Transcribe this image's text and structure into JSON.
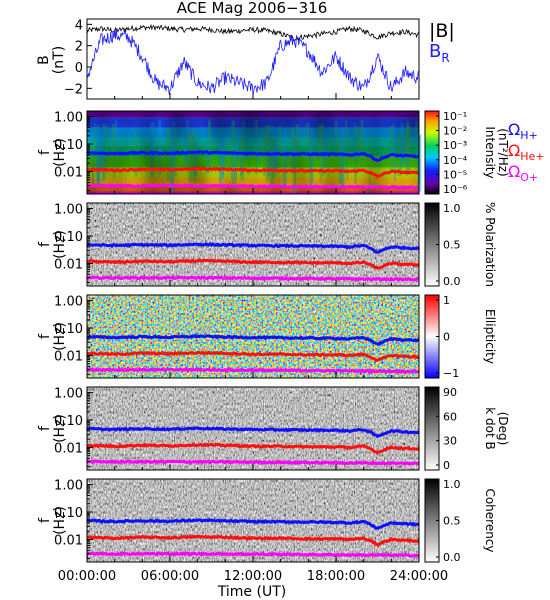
{
  "title": "ACE Mag 2006−316",
  "xaxis": {
    "label": "Time (UT)",
    "ticks": [
      "00:00:00",
      "06:00:00",
      "12:00:00",
      "18:00:00",
      "24:00:00"
    ],
    "range_hours": [
      0,
      24
    ]
  },
  "colors": {
    "B_total": "#000000",
    "B_R": "#1c1cff",
    "H": "#1010ff",
    "He": "#ff1010",
    "O": "#ff00ff"
  },
  "panel1": {
    "ylabel": "B",
    "yunits": "(nT)",
    "yticks": [
      "4",
      "2",
      "0",
      "−2"
    ],
    "legend_B": "|B|",
    "legend_BR": "B",
    "legend_BR_sub": "R"
  },
  "spec_panels": [
    {
      "name": "intensity",
      "ylabel": "f",
      "yunits": "(Hz)",
      "yticks": [
        "1.00",
        "0.10",
        "0.01"
      ],
      "colorbar_label": "Intensity",
      "colorbar_units": "(nT²/Hz)",
      "colorbar_ticks": [
        "10⁻¹",
        "10⁻²",
        "10⁻³",
        "10⁻⁴",
        "10⁻⁵",
        "10⁻⁶"
      ],
      "legend": [
        {
          "sym": "Ω",
          "sub": "H+",
          "color": "H"
        },
        {
          "sym": "Ω",
          "sub": "He+",
          "color": "He"
        },
        {
          "sym": "Ω",
          "sub": "O+",
          "color": "O"
        }
      ]
    },
    {
      "name": "polarization",
      "ylabel": "f",
      "yunits": "(Hz)",
      "yticks": [
        "1.00",
        "0.10",
        "0.01"
      ],
      "colorbar_label": "% Polarization",
      "colorbar_units": "",
      "colorbar_ticks": [
        "1.0",
        "0.5",
        "0.0"
      ]
    },
    {
      "name": "ellipticity",
      "ylabel": "f",
      "yunits": "(Hz)",
      "yticks": [
        "1.00",
        "0.10",
        "0.01"
      ],
      "colorbar_label": "Ellipticity",
      "colorbar_units": "",
      "colorbar_ticks": [
        "1",
        "0",
        "−1"
      ]
    },
    {
      "name": "kdotb",
      "ylabel": "f",
      "yunits": "(Hz)",
      "yticks": [
        "1.00",
        "0.10",
        "0.01"
      ],
      "colorbar_label": "k dot B",
      "colorbar_units": "(Deg)",
      "colorbar_ticks": [
        "90",
        "60",
        "30",
        "0"
      ]
    },
    {
      "name": "coherency",
      "ylabel": "f",
      "yunits": "(Hz)",
      "yticks": [
        "1.00",
        "0.10",
        "0.01"
      ],
      "colorbar_label": "Coherency",
      "colorbar_units": "",
      "colorbar_ticks": [
        "1.0",
        "0.5",
        "0.0"
      ]
    }
  ],
  "chart_data": {
    "type": "line",
    "title": "ACE Mag 2006−316",
    "xlabel": "Time (UT)",
    "ylabel": "B (nT)",
    "xlim_hours": [
      0,
      24
    ],
    "ylim_B": [
      -3,
      4.5
    ],
    "ylim_f_hz": [
      0.0015,
      1.6
    ],
    "series": [
      {
        "name": "|B|",
        "x_hours": [
          0,
          1,
          2,
          3,
          4,
          5,
          6,
          7,
          8,
          9,
          10,
          11,
          12,
          13,
          14,
          15,
          16,
          17,
          18,
          19,
          20,
          21,
          22,
          23,
          24
        ],
        "values": [
          3.4,
          3.6,
          3.4,
          3.6,
          3.7,
          3.7,
          3.6,
          3.5,
          3.6,
          3.5,
          3.3,
          3.4,
          3.5,
          3.4,
          3.1,
          2.7,
          2.9,
          3.1,
          3.3,
          3.6,
          3.4,
          2.8,
          3.2,
          3.3,
          3.0
        ]
      },
      {
        "name": "B",
        "x_hours": [
          0,
          1,
          2,
          3,
          4,
          5,
          6,
          7,
          8,
          9,
          10,
          11,
          12,
          13,
          14,
          15,
          16,
          17,
          18,
          19,
          20,
          21,
          22,
          23,
          24
        ],
        "values": [
          -1.0,
          2.5,
          3.0,
          2.8,
          1.0,
          -1.5,
          -2.0,
          0.5,
          -1.5,
          -2.0,
          -1.0,
          -1.5,
          -2.0,
          -1.5,
          2.0,
          2.5,
          1.5,
          -0.5,
          1.0,
          -1.0,
          -2.0,
          1.0,
          -2.0,
          -0.5,
          -1.0
        ]
      },
      {
        "name": "ΩH+",
        "x_hours": [
          0,
          2,
          4,
          6,
          8,
          10,
          12,
          14,
          16,
          18,
          19,
          20,
          21,
          22,
          23,
          24
        ],
        "values": [
          0.048,
          0.045,
          0.048,
          0.046,
          0.05,
          0.047,
          0.045,
          0.044,
          0.043,
          0.042,
          0.04,
          0.045,
          0.025,
          0.04,
          0.037,
          0.035
        ]
      },
      {
        "name": "ΩHe+",
        "x_hours": [
          0,
          2,
          4,
          6,
          8,
          10,
          12,
          14,
          16,
          18,
          19,
          20,
          21,
          22,
          23,
          24
        ],
        "values": [
          0.012,
          0.011,
          0.012,
          0.0115,
          0.0125,
          0.012,
          0.011,
          0.011,
          0.0105,
          0.0105,
          0.01,
          0.011,
          0.0065,
          0.01,
          0.0092,
          0.0088
        ]
      },
      {
        "name": "ΩO+",
        "x_hours": [
          0,
          4,
          8,
          12,
          16,
          20,
          24
        ],
        "values": [
          0.003,
          0.003,
          0.003,
          0.0029,
          0.0028,
          0.0027,
          0.0026
        ]
      }
    ]
  }
}
